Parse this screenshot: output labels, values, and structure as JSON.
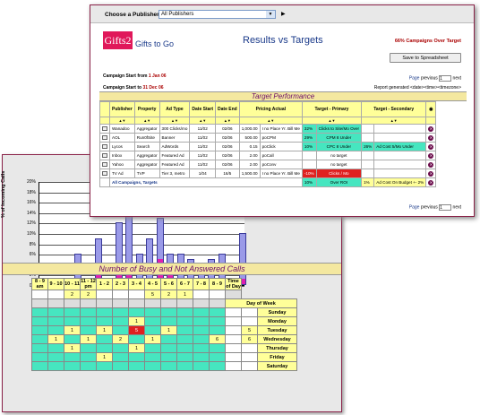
{
  "back": {
    "y_label": "% of Incoming Calls",
    "y_ticks": [
      "20%",
      "18%",
      "16%",
      "14%",
      "12%",
      "10%",
      "8%",
      "6%",
      "4%",
      "2%",
      "0%"
    ],
    "busy_title": "Number of Busy and Not Answered Calls",
    "hours": [
      "8 - 9 am",
      "9 - 10",
      "10 - 11",
      "11 - 12 pm",
      "1 - 2",
      "2 - 3",
      "3 - 4",
      "4 - 5",
      "5 - 6",
      "6 - 7",
      "7 - 8",
      "8 - 9"
    ],
    "time_of_day": "Time of Day",
    "totals": [
      "",
      "",
      "2",
      "2",
      "",
      "",
      "",
      "5",
      "2",
      "1",
      "",
      ""
    ],
    "day_of_week": "Day of Week",
    "days": [
      "Sunday",
      "Monday",
      "Tuesday",
      "Wednesday",
      "Thursday",
      "Friday",
      "Saturday"
    ],
    "day_totals": [
      "",
      "",
      "5",
      "6",
      "",
      "",
      ""
    ],
    "cells": [
      [
        "",
        "",
        "",
        "",
        "",
        "",
        "",
        "",
        "",
        "",
        "",
        ""
      ],
      [
        "",
        "",
        "",
        "",
        "",
        "",
        "1",
        "",
        "",
        "",
        "",
        ""
      ],
      [
        "",
        "",
        "1",
        "",
        "1",
        "",
        "5",
        "",
        "1",
        "",
        "",
        ""
      ],
      [
        "",
        "1",
        "",
        "1",
        "",
        "2",
        "",
        "1",
        "",
        "",
        "",
        "6"
      ],
      [
        "",
        "",
        "1",
        "",
        "",
        "",
        "1",
        "",
        "",
        "",
        "",
        ""
      ],
      [
        "",
        "",
        "",
        "",
        "1",
        "",
        "",
        "",
        "",
        "",
        "",
        ""
      ],
      [
        "",
        "",
        "",
        "",
        "",
        "",
        "",
        "",
        "",
        "",
        "",
        ""
      ]
    ]
  },
  "chart_data": {
    "type": "bar",
    "ylabel": "% of Incoming Calls",
    "ylim": [
      0,
      20
    ],
    "series": [
      {
        "values": [
          0,
          0,
          0,
          6,
          0,
          9,
          0,
          12,
          15,
          6,
          9,
          13,
          6,
          6,
          5,
          4,
          5,
          6,
          0,
          10
        ]
      },
      {
        "values": [
          0,
          0,
          0,
          0,
          0,
          2,
          0,
          2,
          2,
          1,
          1,
          5,
          2,
          1,
          0,
          0,
          0,
          1,
          0,
          1
        ]
      }
    ]
  },
  "front": {
    "publisher_label": "Choose a Publisher",
    "publisher_value": "All Publishers",
    "logo_text": "Gifts2",
    "brand": "Gifts to Go",
    "title": "Results vs Targets",
    "campaigns_over": "66% Campaigns Over Target",
    "save_btn": "Save to Spreadsheet",
    "start_label": "Campaign Start from",
    "start_value": "1 Jan 06",
    "end_label": "Campaign Start to",
    "end_value": "31 Dec 06",
    "page_label": "Page",
    "previous": "previous",
    "page_num": "1",
    "next": "next",
    "report_generated": "Report generated <date><time><timezone>",
    "table_title": "Target Performance",
    "headers": [
      "Publisher",
      "Property",
      "Ad Type",
      "Date Start",
      "Date End",
      "Pricing Actual",
      "Target - Primary",
      "Target - Secondary"
    ],
    "sort": "▲▼",
    "rows": [
      [
        "Wanadoo",
        "Aggregator",
        "300 Clicks/mo",
        "11/02",
        "02/06",
        "1,000.00",
        "I no Place Yr. Bill Me",
        "32%",
        "Clicks to Site/Mo Over",
        "",
        "",
        ""
      ],
      [
        "AOL",
        "Run0fSite",
        "Banner",
        "11/02",
        "02/06",
        "500.00",
        "poCPM",
        "29%",
        "CPM 8 Under",
        "",
        "",
        ""
      ],
      [
        "Lycos",
        "Search",
        "AdWords",
        "11/02",
        "02/06",
        "0.15",
        "poClick",
        "10%",
        "CPC 8 Under",
        "26%",
        "Ad Cost 5/Mo Under",
        ""
      ],
      [
        "Inbox",
        "Aggregator",
        "Featured Ad",
        "11/02",
        "02/06",
        "2.00",
        "poCall",
        "",
        "no target",
        "",
        "",
        ""
      ],
      [
        "Yahoo",
        "Aggregator",
        "Featured Ad",
        "11/02",
        "02/06",
        "2.00",
        "poConv",
        "",
        "no target",
        "",
        "",
        ""
      ],
      [
        "TV Ad",
        "TVP",
        "Tier 3, metro",
        "1/04",
        "16/5",
        "1,500.00",
        "I no Place Yr. Bill Me",
        "-10%",
        "Clicks / Mo",
        "",
        "",
        ""
      ]
    ],
    "all_row": [
      "All Campaigns, Targets",
      "10%",
      "Over ROI",
      "1%",
      "Ad Cost On Budget +- 2%"
    ]
  }
}
